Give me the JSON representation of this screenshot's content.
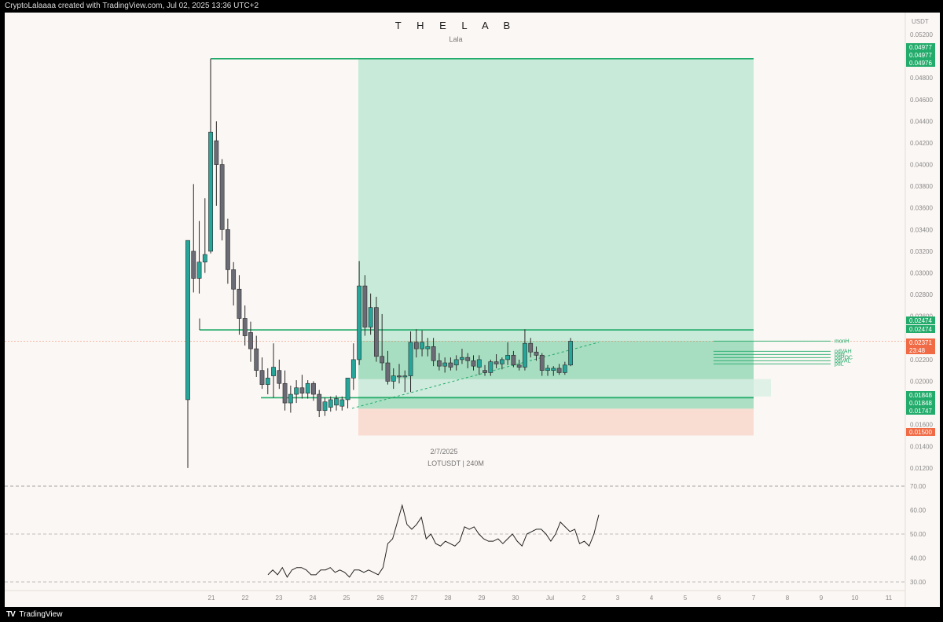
{
  "header": {
    "text": "CryptoLalaaaa created with TradingView.com, Jul 02, 2025 13:36 UTC+2"
  },
  "chart_title": "T H E  L A B",
  "chart_subtitle": "Lala",
  "annotation_date": "2/7/2025",
  "annotation_symbol": "LOTUSDT | 240M",
  "footer": {
    "logo": "TV",
    "brand": "TradingView"
  },
  "colors": {
    "up": "#26a69a",
    "down": "#6b6b75",
    "profit": "#22ab6a",
    "loss": "#f06b45"
  },
  "chart_data": [
    {
      "type": "candlestick",
      "symbol": "LOTUSDT",
      "interval": "240M",
      "currency_label": "USDT",
      "ylim": [
        0.0115,
        0.0535
      ],
      "y_ticks": [
        "0.05200",
        "0.05000",
        "0.04800",
        "0.04600",
        "0.04400",
        "0.04200",
        "0.04000",
        "0.03800",
        "0.03600",
        "0.03400",
        "0.03200",
        "0.03000",
        "0.02800",
        "0.02600",
        "0.02200",
        "0.02000",
        "0.01600",
        "0.01400",
        "0.01200"
      ],
      "x_ticks": [
        "21",
        "22",
        "23",
        "24",
        "25",
        "26",
        "27",
        "28",
        "29",
        "30",
        "Jul",
        "2",
        "3",
        "4",
        "5",
        "6",
        "7",
        "8",
        "9",
        "10",
        "11"
      ],
      "price_badges": [
        {
          "label": "0.04977",
          "value": 0.04977,
          "color": "#22ab6a"
        },
        {
          "label": "0.04977",
          "value": 0.04977,
          "color": "#22ab6a"
        },
        {
          "label": "0.04976",
          "value": 0.04976,
          "color": "#22ab6a"
        },
        {
          "label": "0.02474",
          "value": 0.02474,
          "color": "#22ab6a"
        },
        {
          "label": "0.02474",
          "value": 0.02474,
          "color": "#22ab6a"
        },
        {
          "label": "0.02371",
          "value": 0.02371,
          "color": "#f06b45",
          "sub": "23:48"
        },
        {
          "label": "0.01848",
          "value": 0.01848,
          "color": "#22ab6a"
        },
        {
          "label": "0.01848",
          "value": 0.01848,
          "color": "#22ab6a"
        },
        {
          "label": "0.01747",
          "value": 0.01747,
          "color": "#22ab6a"
        },
        {
          "label": "0.01500",
          "value": 0.015,
          "color": "#f06b45"
        }
      ],
      "level_labels": [
        "monH",
        "pdVAH",
        "pdH",
        "pdPOC",
        "pdVAL",
        "pdL"
      ],
      "position": {
        "entry": 0.01848,
        "target": 0.04977,
        "stop": 0.015,
        "zone_high": 0.02474,
        "zone_low": 0.01747
      },
      "candles": [
        {
          "o": 0.0183,
          "h": 0.033,
          "l": 0.012,
          "c": 0.033
        },
        {
          "o": 0.032,
          "h": 0.0382,
          "l": 0.0282,
          "c": 0.0295
        },
        {
          "o": 0.0295,
          "h": 0.0348,
          "l": 0.0281,
          "c": 0.031
        },
        {
          "o": 0.031,
          "h": 0.0369,
          "l": 0.03,
          "c": 0.0317
        },
        {
          "o": 0.032,
          "h": 0.0497,
          "l": 0.0318,
          "c": 0.043
        },
        {
          "o": 0.0422,
          "h": 0.044,
          "l": 0.0362,
          "c": 0.04
        },
        {
          "o": 0.04,
          "h": 0.0405,
          "l": 0.033,
          "c": 0.034
        },
        {
          "o": 0.034,
          "h": 0.035,
          "l": 0.029,
          "c": 0.0303
        },
        {
          "o": 0.0303,
          "h": 0.031,
          "l": 0.027,
          "c": 0.0285
        },
        {
          "o": 0.0285,
          "h": 0.0298,
          "l": 0.0243,
          "c": 0.0258
        },
        {
          "o": 0.0258,
          "h": 0.027,
          "l": 0.0233,
          "c": 0.0242
        },
        {
          "o": 0.0245,
          "h": 0.0255,
          "l": 0.0218,
          "c": 0.023
        },
        {
          "o": 0.023,
          "h": 0.0242,
          "l": 0.0204,
          "c": 0.021
        },
        {
          "o": 0.021,
          "h": 0.0222,
          "l": 0.0193,
          "c": 0.0197
        },
        {
          "o": 0.0197,
          "h": 0.0212,
          "l": 0.0188,
          "c": 0.0203
        },
        {
          "o": 0.0205,
          "h": 0.0235,
          "l": 0.0185,
          "c": 0.0213
        },
        {
          "o": 0.021,
          "h": 0.022,
          "l": 0.0193,
          "c": 0.0198
        },
        {
          "o": 0.0198,
          "h": 0.021,
          "l": 0.0173,
          "c": 0.018
        },
        {
          "o": 0.018,
          "h": 0.0196,
          "l": 0.0171,
          "c": 0.0188
        },
        {
          "o": 0.0188,
          "h": 0.0201,
          "l": 0.018,
          "c": 0.0194
        },
        {
          "o": 0.0194,
          "h": 0.0206,
          "l": 0.0184,
          "c": 0.0189
        },
        {
          "o": 0.0189,
          "h": 0.0201,
          "l": 0.0184,
          "c": 0.0198
        },
        {
          "o": 0.0198,
          "h": 0.02,
          "l": 0.0182,
          "c": 0.0188
        },
        {
          "o": 0.0188,
          "h": 0.0192,
          "l": 0.0167,
          "c": 0.0173
        },
        {
          "o": 0.0173,
          "h": 0.0185,
          "l": 0.0168,
          "c": 0.0181
        },
        {
          "o": 0.0176,
          "h": 0.0186,
          "l": 0.0172,
          "c": 0.0183
        },
        {
          "o": 0.0178,
          "h": 0.0187,
          "l": 0.0173,
          "c": 0.0184
        },
        {
          "o": 0.0177,
          "h": 0.0186,
          "l": 0.0173,
          "c": 0.0183
        },
        {
          "o": 0.0183,
          "h": 0.0203,
          "l": 0.0175,
          "c": 0.0203
        },
        {
          "o": 0.0203,
          "h": 0.0235,
          "l": 0.0192,
          "c": 0.022
        },
        {
          "o": 0.022,
          "h": 0.0311,
          "l": 0.0215,
          "c": 0.0288
        },
        {
          "o": 0.0288,
          "h": 0.0298,
          "l": 0.0242,
          "c": 0.025
        },
        {
          "o": 0.025,
          "h": 0.0281,
          "l": 0.0243,
          "c": 0.0268
        },
        {
          "o": 0.0268,
          "h": 0.0278,
          "l": 0.0218,
          "c": 0.0223
        },
        {
          "o": 0.0223,
          "h": 0.0262,
          "l": 0.021,
          "c": 0.0217
        },
        {
          "o": 0.0217,
          "h": 0.0228,
          "l": 0.0197,
          "c": 0.02
        },
        {
          "o": 0.02,
          "h": 0.0212,
          "l": 0.0193,
          "c": 0.0205
        },
        {
          "o": 0.0205,
          "h": 0.0216,
          "l": 0.0198,
          "c": 0.0204
        },
        {
          "o": 0.0204,
          "h": 0.021,
          "l": 0.019,
          "c": 0.0205
        },
        {
          "o": 0.0205,
          "h": 0.0246,
          "l": 0.019,
          "c": 0.0236
        },
        {
          "o": 0.0236,
          "h": 0.0248,
          "l": 0.0222,
          "c": 0.023
        },
        {
          "o": 0.023,
          "h": 0.0247,
          "l": 0.0223,
          "c": 0.0236
        },
        {
          "o": 0.023,
          "h": 0.024,
          "l": 0.0223,
          "c": 0.0232
        },
        {
          "o": 0.0232,
          "h": 0.024,
          "l": 0.0214,
          "c": 0.0219
        },
        {
          "o": 0.0219,
          "h": 0.0226,
          "l": 0.021,
          "c": 0.0214
        },
        {
          "o": 0.0214,
          "h": 0.0222,
          "l": 0.0208,
          "c": 0.0217
        },
        {
          "o": 0.0217,
          "h": 0.0222,
          "l": 0.021,
          "c": 0.0213
        },
        {
          "o": 0.0215,
          "h": 0.0224,
          "l": 0.021,
          "c": 0.022
        },
        {
          "o": 0.022,
          "h": 0.023,
          "l": 0.0216,
          "c": 0.0222
        },
        {
          "o": 0.0222,
          "h": 0.0226,
          "l": 0.0212,
          "c": 0.0219
        },
        {
          "o": 0.0219,
          "h": 0.0224,
          "l": 0.021,
          "c": 0.0214
        },
        {
          "o": 0.0213,
          "h": 0.0224,
          "l": 0.0206,
          "c": 0.022
        },
        {
          "o": 0.021,
          "h": 0.0215,
          "l": 0.0205,
          "c": 0.0208
        },
        {
          "o": 0.0208,
          "h": 0.022,
          "l": 0.0205,
          "c": 0.0218
        },
        {
          "o": 0.0218,
          "h": 0.0225,
          "l": 0.0212,
          "c": 0.0216
        },
        {
          "o": 0.0216,
          "h": 0.0222,
          "l": 0.0211,
          "c": 0.022
        },
        {
          "o": 0.022,
          "h": 0.0236,
          "l": 0.0215,
          "c": 0.0224
        },
        {
          "o": 0.0224,
          "h": 0.0228,
          "l": 0.0213,
          "c": 0.0215
        },
        {
          "o": 0.0215,
          "h": 0.022,
          "l": 0.021,
          "c": 0.0213
        },
        {
          "o": 0.0213,
          "h": 0.0248,
          "l": 0.021,
          "c": 0.0235
        },
        {
          "o": 0.0235,
          "h": 0.024,
          "l": 0.0222,
          "c": 0.0227
        },
        {
          "o": 0.0227,
          "h": 0.0232,
          "l": 0.0219,
          "c": 0.0224
        },
        {
          "o": 0.0224,
          "h": 0.0226,
          "l": 0.0205,
          "c": 0.021
        },
        {
          "o": 0.021,
          "h": 0.0215,
          "l": 0.0205,
          "c": 0.0212
        },
        {
          "o": 0.021,
          "h": 0.0214,
          "l": 0.0205,
          "c": 0.0212
        },
        {
          "o": 0.0212,
          "h": 0.0216,
          "l": 0.0206,
          "c": 0.0208
        },
        {
          "o": 0.0208,
          "h": 0.0218,
          "l": 0.0206,
          "c": 0.0215
        },
        {
          "o": 0.0215,
          "h": 0.024,
          "l": 0.0214,
          "c": 0.0237
        }
      ]
    },
    {
      "type": "line",
      "name": "oscillator",
      "ylim": [
        25,
        80
      ],
      "y_ticks": [
        "70.00",
        "60.00",
        "50.00",
        "40.00",
        "30.00"
      ],
      "guides": [
        70,
        50,
        30
      ],
      "values": [
        33,
        35,
        33,
        36,
        32,
        35,
        36,
        36,
        35,
        33,
        33,
        35,
        35,
        36,
        34,
        35,
        34,
        32,
        35,
        35,
        34,
        35,
        34,
        33,
        36,
        46,
        48,
        55,
        62,
        54,
        52,
        54,
        57,
        48,
        50,
        46,
        45,
        47,
        46,
        45,
        47,
        53,
        52,
        53,
        50,
        48,
        47,
        47,
        48,
        46,
        48,
        50,
        47,
        45,
        50,
        51,
        52,
        52,
        50,
        47,
        50,
        55,
        53,
        51,
        52,
        46,
        47,
        45,
        50,
        58
      ]
    }
  ]
}
